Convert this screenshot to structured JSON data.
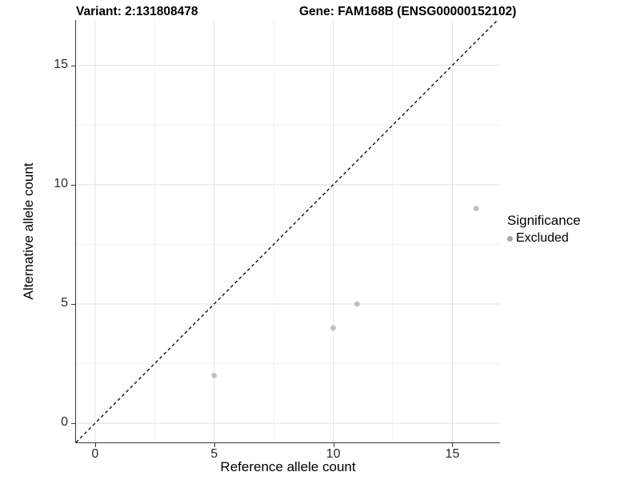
{
  "figure": {
    "background": "#ffffff",
    "titles": {
      "left": "Variant: 2:131808478",
      "right": "Gene: FAM168B (ENSG00000152102)"
    },
    "legend": {
      "title": "Significance",
      "items": [
        {
          "label": "Excluded",
          "color": "#a6a6a6"
        }
      ]
    }
  },
  "chart_data": {
    "type": "scatter",
    "title": "Variant: 2:131808478  |  Gene: FAM168B (ENSG00000152102)",
    "xlabel": "Reference allele count",
    "ylabel": "Alternative allele count",
    "xlim": [
      -0.8,
      17.0
    ],
    "ylim": [
      -0.8,
      16.9
    ],
    "x_ticks": [
      0,
      5,
      10,
      15
    ],
    "y_ticks": [
      0,
      5,
      10,
      15
    ],
    "x_minor_ticks": [
      2.5,
      7.5,
      12.5
    ],
    "y_minor_ticks": [
      2.5,
      7.5,
      12.5
    ],
    "grid": true,
    "legend_position": "right",
    "series": [
      {
        "name": "Excluded",
        "marker": "circle",
        "color": "#c1c1c1",
        "point_radius": 3.4,
        "points": [
          {
            "x": 5,
            "y": 2
          },
          {
            "x": 10,
            "y": 4
          },
          {
            "x": 11,
            "y": 5
          },
          {
            "x": 16,
            "y": 9
          }
        ]
      }
    ],
    "reference_line": {
      "style": "dashed",
      "slope": 1,
      "intercept": 0,
      "color": "#000000"
    },
    "colors": {
      "grid_major": "#e2e2e2",
      "grid_minor": "#f1f1f1",
      "axis_line": "#3a3a3a",
      "tick_text": "#2b2b2b"
    }
  }
}
